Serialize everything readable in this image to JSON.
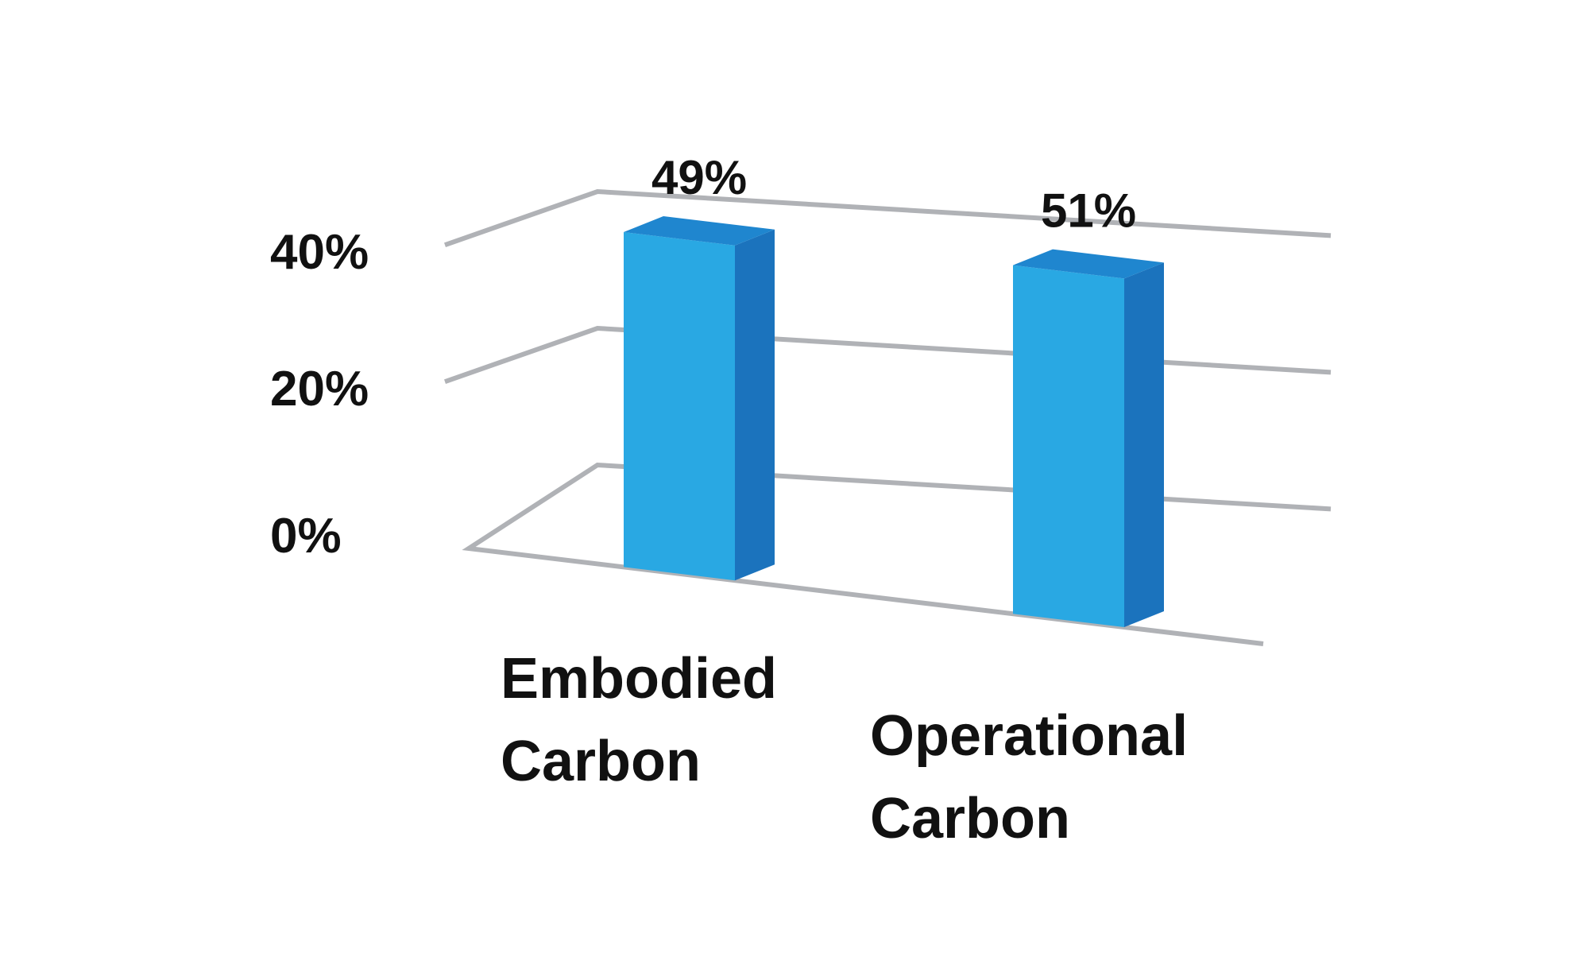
{
  "chart_data": {
    "type": "bar",
    "style": "3d-column",
    "categories": [
      {
        "lines": [
          "Embodied",
          "Carbon"
        ]
      },
      {
        "lines": [
          "Operational",
          "Carbon"
        ]
      }
    ],
    "values": [
      49,
      51
    ],
    "value_labels": [
      "49%",
      "51%"
    ],
    "y_ticks": [
      {
        "value": 0,
        "label": "0%"
      },
      {
        "value": 20,
        "label": "20%"
      },
      {
        "value": 40,
        "label": "40%"
      }
    ],
    "ylim": [
      0,
      50
    ],
    "grid": true,
    "legend": "none",
    "colors": {
      "bar_front": "#29a8e3",
      "bar_side": "#1b73bd",
      "bar_top": "#1f86cf",
      "gridline": "#b0b2b6",
      "text": "#111111"
    }
  }
}
